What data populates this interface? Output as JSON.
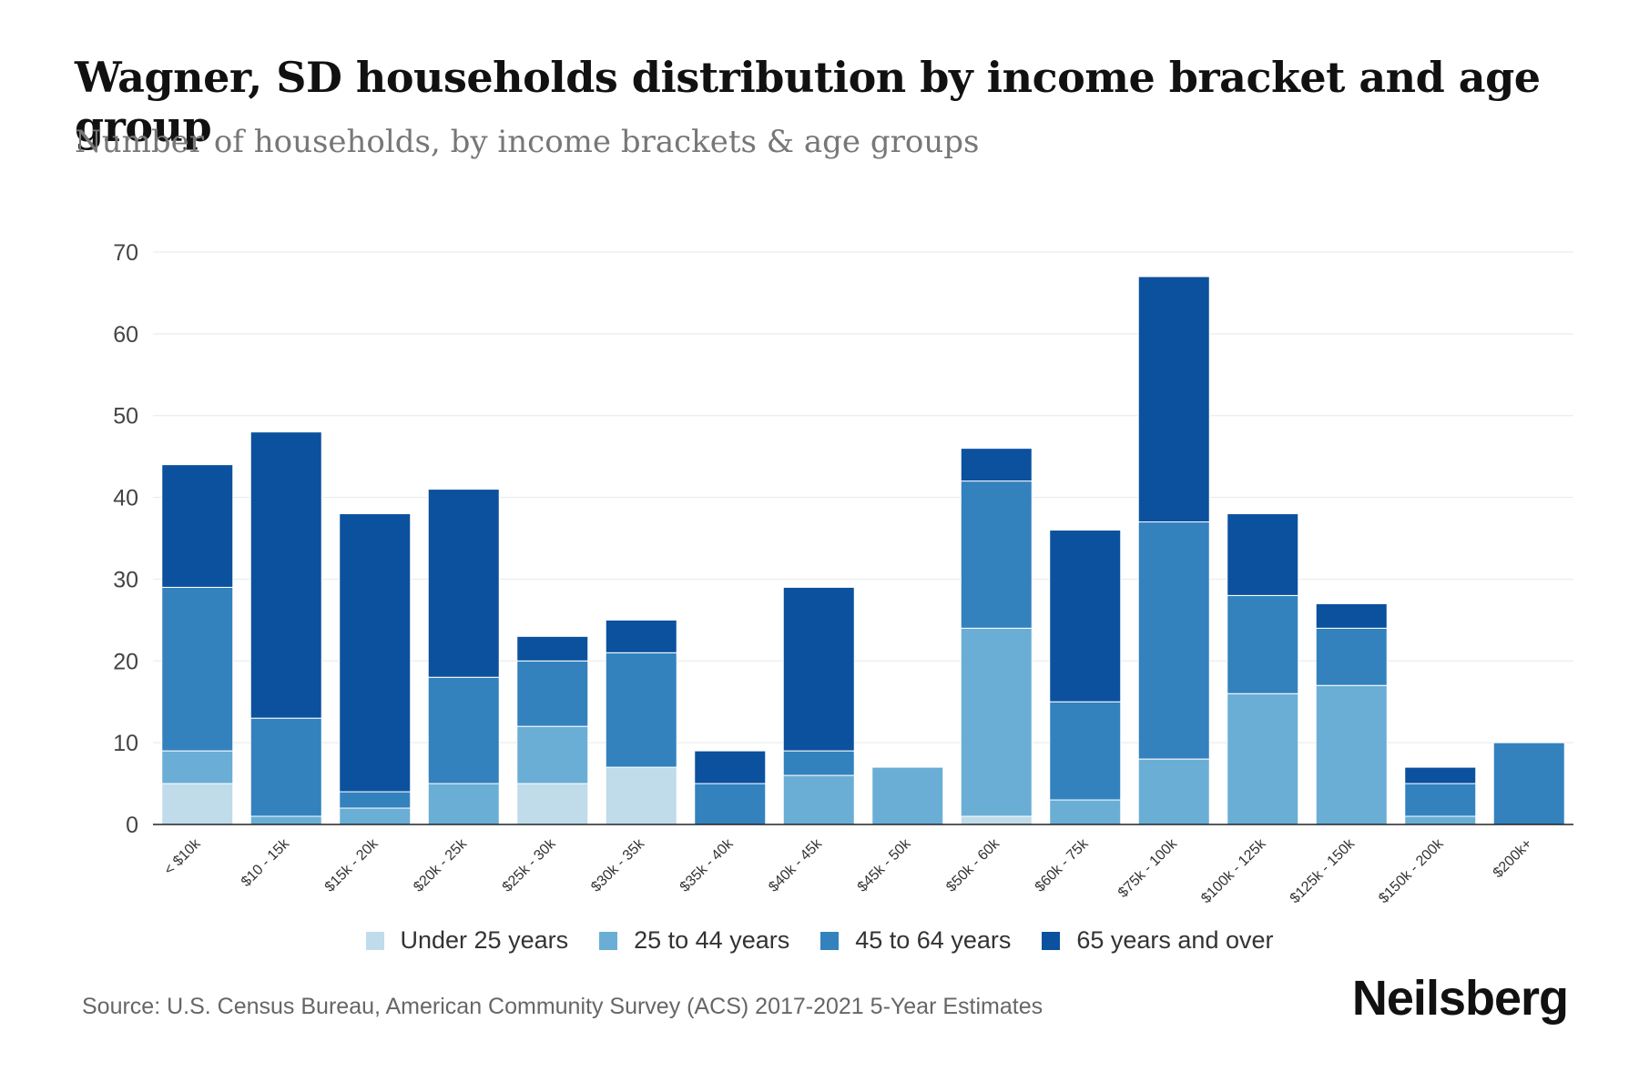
{
  "header": {
    "title": "Wagner, SD households distribution by income bracket and age group",
    "subtitle": "Number of households, by income brackets & age groups"
  },
  "footer": {
    "source": "Source: U.S. Census Bureau, American Community Survey (ACS) 2017-2021 5-Year Estimates",
    "brand": "Neilsberg"
  },
  "chart_data": {
    "type": "bar",
    "stacked": true,
    "title": "Wagner, SD households distribution by income bracket and age group",
    "subtitle": "Number of households, by income brackets & age groups",
    "xlabel": "",
    "ylabel": "",
    "ylim": [
      0,
      70
    ],
    "yticks": [
      0,
      10,
      20,
      30,
      40,
      50,
      60,
      70
    ],
    "grid": true,
    "legend_position": "bottom",
    "categories": [
      "< $10k",
      "$10 - 15k",
      "$15k - 20k",
      "$20k - 25k",
      "$25k - 30k",
      "$30k - 35k",
      "$35k - 40k",
      "$40k - 45k",
      "$45k - 50k",
      "$50k - 60k",
      "$60k - 75k",
      "$75k - 100k",
      "$100k - 125k",
      "$125k - 150k",
      "$150k - 200k",
      "$200k+"
    ],
    "series": [
      {
        "name": "Under 25 years",
        "color": "#c0dbea",
        "values": [
          5,
          0,
          0,
          0,
          5,
          7,
          0,
          0,
          0,
          1,
          0,
          0,
          0,
          0,
          0,
          0
        ]
      },
      {
        "name": "25 to 44 years",
        "color": "#6aaed6",
        "values": [
          4,
          1,
          2,
          5,
          7,
          0,
          0,
          6,
          7,
          23,
          3,
          8,
          16,
          17,
          1,
          0
        ]
      },
      {
        "name": "45 to 64 years",
        "color": "#3382be",
        "values": [
          20,
          12,
          2,
          13,
          8,
          14,
          5,
          3,
          0,
          18,
          12,
          29,
          12,
          7,
          4,
          10
        ]
      },
      {
        "name": "65 years and over",
        "color": "#0b519e",
        "values": [
          15,
          35,
          34,
          23,
          3,
          4,
          4,
          20,
          0,
          4,
          21,
          30,
          10,
          3,
          2,
          0
        ]
      }
    ]
  }
}
